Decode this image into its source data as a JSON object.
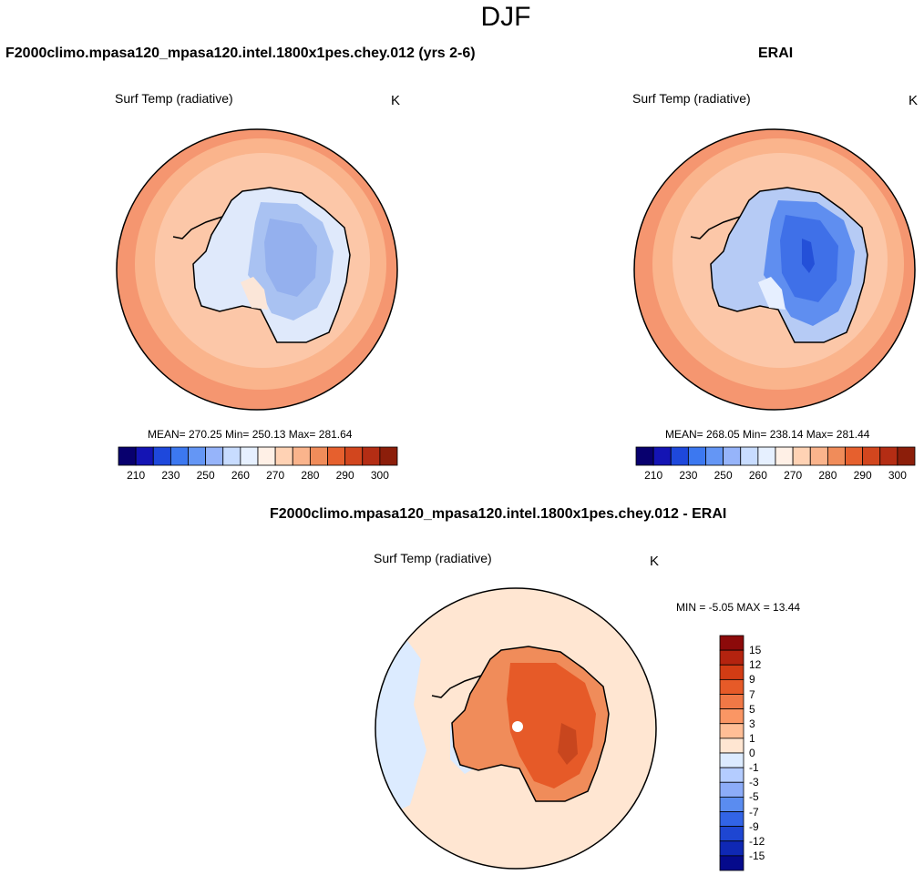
{
  "figure": {
    "title": "DJF"
  },
  "chart_data": [
    {
      "type": "heatmap",
      "projection": "south-polar-stereographic",
      "title": "F2000climo.mpasa120_mpasa120.intel.1800x1pes.chey.012 (yrs 2-6)",
      "variable": "Surf Temp (radiative)",
      "units": "K",
      "stats": "MEAN= 270.25  Min= 250.13  Max= 281.64",
      "mean": 270.25,
      "min": 250.13,
      "max": 281.64,
      "contour_levels": [
        210,
        220,
        230,
        240,
        250,
        255,
        260,
        265,
        270,
        275,
        280,
        285,
        290,
        295,
        300
      ],
      "colorbar_tick_labels": [
        "210",
        "230",
        "250",
        "260",
        "270",
        "280",
        "290",
        "300"
      ],
      "colorbar_colors": [
        "#08006e",
        "#1414b4",
        "#1e48dc",
        "#3c78f0",
        "#6496f5",
        "#96b4fa",
        "#c8dcff",
        "#e6f0ff",
        "#fff0e6",
        "#ffd2b4",
        "#fab48c",
        "#f08c5a",
        "#e6602e",
        "#d2461e",
        "#b42d14",
        "#8c1e0a"
      ],
      "colorbar_orientation": "horizontal"
    },
    {
      "type": "heatmap",
      "projection": "south-polar-stereographic",
      "title": "ERAI",
      "variable": "Surf Temp (radiative)",
      "units": "K",
      "stats": "MEAN= 268.05  Min= 238.14  Max= 281.44",
      "mean": 268.05,
      "min": 238.14,
      "max": 281.44,
      "contour_levels": [
        210,
        220,
        230,
        240,
        250,
        255,
        260,
        265,
        270,
        275,
        280,
        285,
        290,
        295,
        300
      ],
      "colorbar_tick_labels": [
        "210",
        "230",
        "250",
        "260",
        "270",
        "280",
        "290",
        "300"
      ],
      "colorbar_colors": [
        "#08006e",
        "#1414b4",
        "#1e48dc",
        "#3c78f0",
        "#6496f5",
        "#96b4fa",
        "#c8dcff",
        "#e6f0ff",
        "#fff0e6",
        "#ffd2b4",
        "#fab48c",
        "#f08c5a",
        "#e6602e",
        "#d2461e",
        "#b42d14",
        "#8c1e0a"
      ],
      "colorbar_orientation": "horizontal"
    },
    {
      "type": "heatmap",
      "projection": "south-polar-stereographic",
      "title": "F2000climo.mpasa120_mpasa120.intel.1800x1pes.chey.012 - ERAI",
      "variable": "Surf Temp (radiative)",
      "units": "K",
      "stats": "MIN =  -5.05 MAX =  13.44",
      "min": -5.05,
      "max": 13.44,
      "contour_levels": [
        -15,
        -12,
        -9,
        -7,
        -5,
        -3,
        -1,
        0,
        1,
        3,
        5,
        7,
        9,
        12,
        15
      ],
      "colorbar_tick_labels": [
        "15",
        "12",
        "9",
        "7",
        "5",
        "3",
        "1",
        "0",
        "-1",
        "-3",
        "-5",
        "-7",
        "-9",
        "-12",
        "-15"
      ],
      "colorbar_colors": [
        "#8c0a0a",
        "#b4230f",
        "#d23c14",
        "#e65a28",
        "#f07846",
        "#fa9664",
        "#ffbe96",
        "#ffe6d2",
        "#dcebff",
        "#b4ccff",
        "#8cacf8",
        "#5a8cf0",
        "#3264e6",
        "#1e46d2",
        "#0f28b4",
        "#050a8c"
      ],
      "colorbar_orientation": "vertical"
    }
  ]
}
